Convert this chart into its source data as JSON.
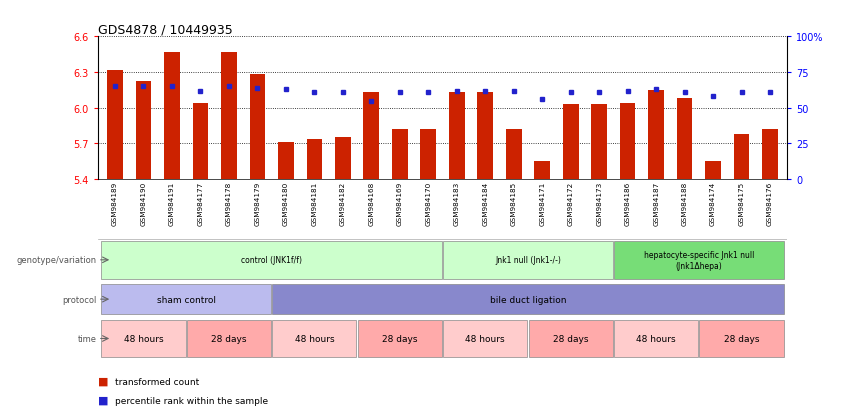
{
  "title": "GDS4878 / 10449935",
  "samples": [
    "GSM984189",
    "GSM984190",
    "GSM984191",
    "GSM984177",
    "GSM984178",
    "GSM984179",
    "GSM984180",
    "GSM984181",
    "GSM984182",
    "GSM984168",
    "GSM984169",
    "GSM984170",
    "GSM984183",
    "GSM984184",
    "GSM984185",
    "GSM984171",
    "GSM984172",
    "GSM984173",
    "GSM984186",
    "GSM984187",
    "GSM984188",
    "GSM984174",
    "GSM984175",
    "GSM984176"
  ],
  "bar_values": [
    6.32,
    6.22,
    6.47,
    6.04,
    6.47,
    6.28,
    5.71,
    5.74,
    5.75,
    6.13,
    5.82,
    5.82,
    6.13,
    6.13,
    5.82,
    5.55,
    6.03,
    6.03,
    6.04,
    6.15,
    6.08,
    5.55,
    5.78,
    5.82
  ],
  "dot_pct": [
    65,
    65,
    65,
    62,
    65,
    64,
    63,
    61,
    61,
    55,
    61,
    61,
    62,
    62,
    62,
    56,
    61,
    61,
    62,
    63,
    61,
    58,
    61,
    61
  ],
  "ylim_left": [
    5.4,
    6.6
  ],
  "yticks_left": [
    5.4,
    5.7,
    6.0,
    6.3,
    6.6
  ],
  "ylim_right": [
    0,
    100
  ],
  "yticks_right": [
    0,
    25,
    50,
    75,
    100
  ],
  "bar_color": "#cc2200",
  "dot_color": "#2222cc",
  "bar_base": 5.4,
  "genotype_groups": [
    {
      "label": "control (JNK1f/f)",
      "start": 0,
      "end": 11,
      "color": "#ccffcc"
    },
    {
      "label": "Jnk1 null (Jnk1-/-)",
      "start": 12,
      "end": 17,
      "color": "#ccffcc"
    },
    {
      "label": "hepatocyte-specific Jnk1 null\n(Jnk1Δhepa)",
      "start": 18,
      "end": 23,
      "color": "#77dd77"
    }
  ],
  "protocol_groups": [
    {
      "label": "sham control",
      "start": 0,
      "end": 5,
      "color": "#bbbbee"
    },
    {
      "label": "bile duct ligation",
      "start": 6,
      "end": 23,
      "color": "#8888cc"
    }
  ],
  "time_groups": [
    {
      "label": "48 hours",
      "start": 0,
      "end": 2,
      "color": "#ffcccc"
    },
    {
      "label": "28 days",
      "start": 3,
      "end": 5,
      "color": "#ffaaaa"
    },
    {
      "label": "48 hours",
      "start": 6,
      "end": 8,
      "color": "#ffcccc"
    },
    {
      "label": "28 days",
      "start": 9,
      "end": 11,
      "color": "#ffaaaa"
    },
    {
      "label": "48 hours",
      "start": 12,
      "end": 14,
      "color": "#ffcccc"
    },
    {
      "label": "28 days",
      "start": 15,
      "end": 17,
      "color": "#ffaaaa"
    },
    {
      "label": "48 hours",
      "start": 18,
      "end": 20,
      "color": "#ffcccc"
    },
    {
      "label": "28 days",
      "start": 21,
      "end": 23,
      "color": "#ffaaaa"
    }
  ],
  "legend_bar_label": "transformed count",
  "legend_dot_label": "percentile rank within the sample",
  "row_labels": [
    "genotype/variation",
    "protocol",
    "time"
  ]
}
